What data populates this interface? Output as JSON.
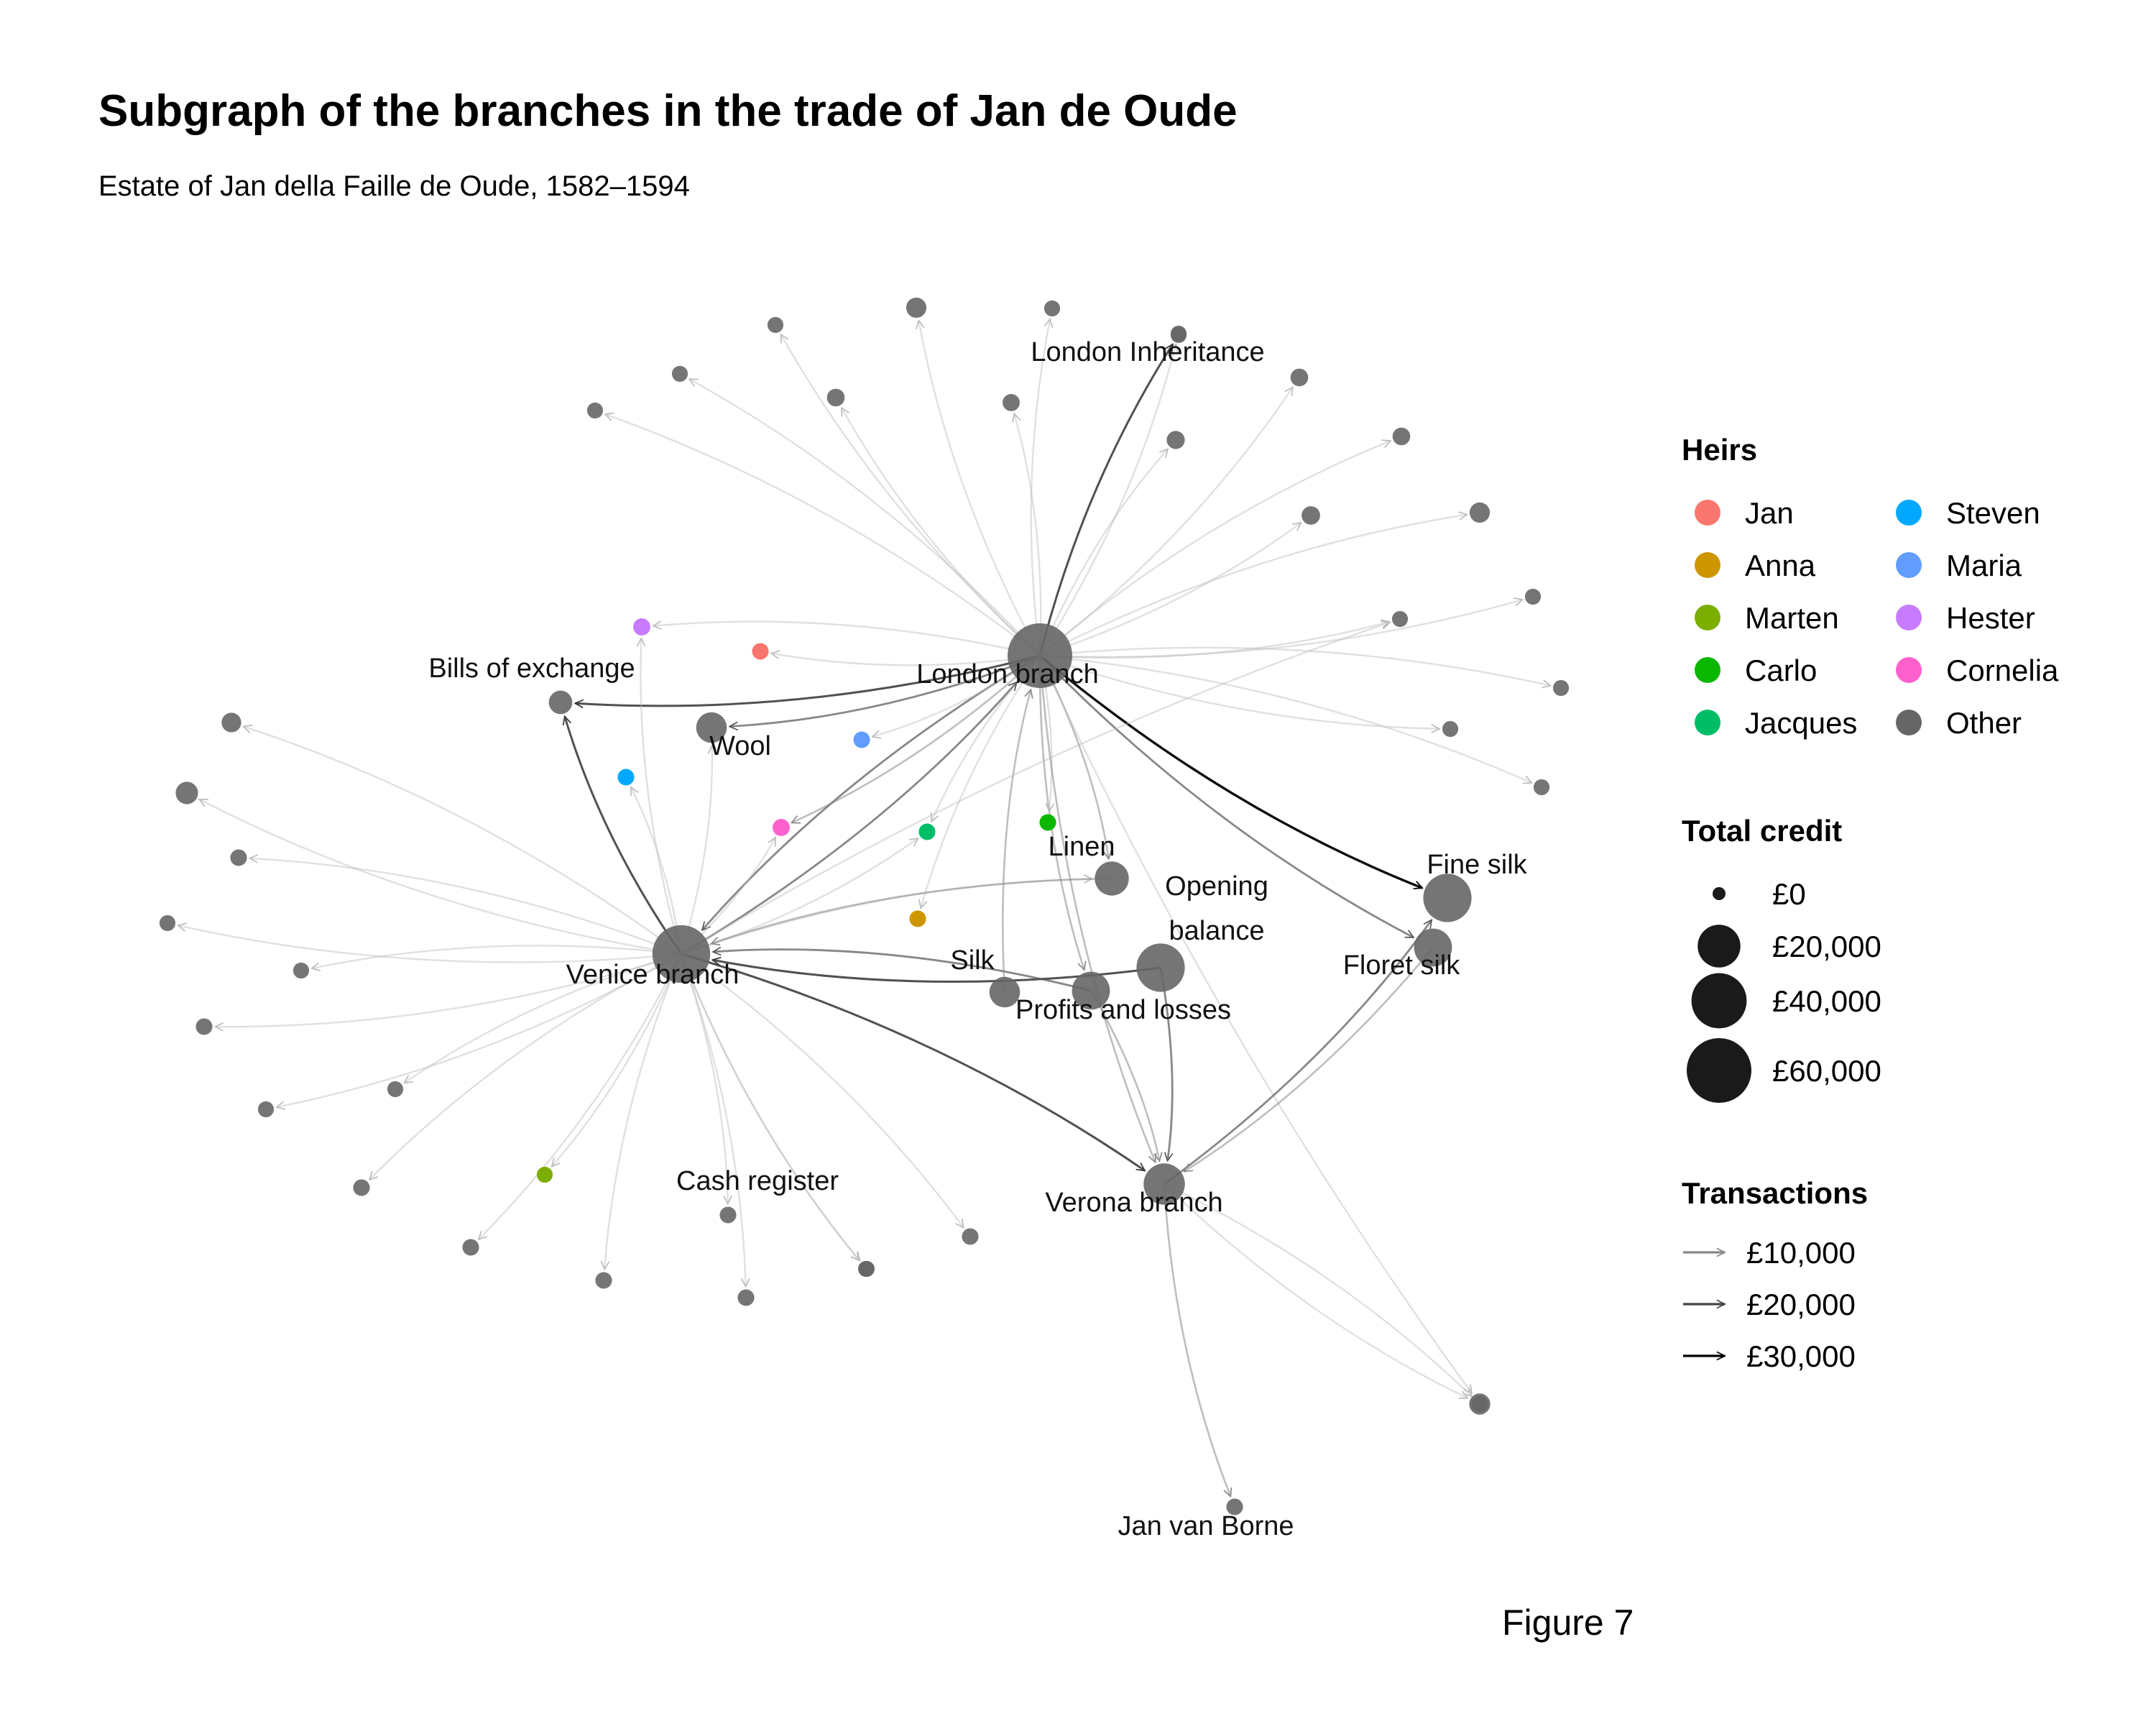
{
  "title": "Subgraph of the branches in the trade of Jan de Oude",
  "subtitle": "Estate of Jan della Faille de Oude, 1582–1594",
  "caption": "Figure 7",
  "legend": {
    "heirs_title": "Heirs",
    "heirs": [
      {
        "name": "Jan",
        "color": "#F8766D"
      },
      {
        "name": "Anna",
        "color": "#CD9600"
      },
      {
        "name": "Marten",
        "color": "#7CAE00"
      },
      {
        "name": "Carlo",
        "color": "#0CB702"
      },
      {
        "name": "Jacques",
        "color": "#00BE67"
      },
      {
        "name": "Steven",
        "color": "#00A9FF"
      },
      {
        "name": "Maria",
        "color": "#619CFF"
      },
      {
        "name": "Hester",
        "color": "#C77CFF"
      },
      {
        "name": "Cornelia",
        "color": "#FF61CC"
      },
      {
        "name": "Other",
        "color": "#666666"
      }
    ],
    "credit_title": "Total credit",
    "credit": [
      {
        "label": "£0",
        "value": 0
      },
      {
        "label": "£20,000",
        "value": 20000
      },
      {
        "label": "£40,000",
        "value": 40000
      },
      {
        "label": "£60,000",
        "value": 60000
      }
    ],
    "transactions_title": "Transactions",
    "transactions": [
      {
        "label": "£10,000",
        "value": 10000
      },
      {
        "label": "£20,000",
        "value": 20000
      },
      {
        "label": "£30,000",
        "value": 30000
      }
    ]
  },
  "network": {
    "nodes": [
      {
        "id": "london",
        "label": "London branch",
        "group": "Other",
        "credit": 60000
      },
      {
        "id": "venice",
        "label": "Venice branch",
        "group": "Other",
        "credit": 45000
      },
      {
        "id": "verona",
        "label": "Verona branch",
        "group": "Other",
        "credit": 18000
      },
      {
        "id": "london_inh",
        "label": "London Inheritance",
        "group": "Other",
        "credit": 200
      },
      {
        "id": "bills",
        "label": "Bills of exchange",
        "group": "Other",
        "credit": 2500
      },
      {
        "id": "wool",
        "label": "Wool",
        "group": "Other",
        "credit": 7000
      },
      {
        "id": "linen",
        "label": "Linen",
        "group": "Other",
        "credit": 10000
      },
      {
        "id": "opening",
        "label": "Opening\nbalance",
        "group": "Other",
        "credit": 28000
      },
      {
        "id": "fine_silk",
        "label": "Fine silk",
        "group": "Other",
        "credit": 28000
      },
      {
        "id": "floret_silk",
        "label": "Floret silk",
        "group": "Other",
        "credit": 14000
      },
      {
        "id": "silk",
        "label": "Silk",
        "group": "Other",
        "credit": 7000
      },
      {
        "id": "profits",
        "label": "Profits and losses",
        "group": "Other",
        "credit": 14000
      },
      {
        "id": "cash",
        "label": "Cash register",
        "group": "Other",
        "credit": 300
      },
      {
        "id": "van_borne",
        "label": "Jan van Borne",
        "group": "Other",
        "credit": 300
      },
      {
        "id": "h_jan",
        "label": "",
        "group": "Jan",
        "credit": 300
      },
      {
        "id": "h_anna",
        "label": "",
        "group": "Anna",
        "credit": 300
      },
      {
        "id": "h_marten",
        "label": "",
        "group": "Marten",
        "credit": 200
      },
      {
        "id": "h_carlo",
        "label": "",
        "group": "Carlo",
        "credit": 300
      },
      {
        "id": "h_jacques",
        "label": "",
        "group": "Jacques",
        "credit": 300
      },
      {
        "id": "h_steven",
        "label": "",
        "group": "Steven",
        "credit": 300
      },
      {
        "id": "h_maria",
        "label": "",
        "group": "Maria",
        "credit": 300
      },
      {
        "id": "h_hester",
        "label": "",
        "group": "Hester",
        "credit": 400
      },
      {
        "id": "h_cornelia",
        "label": "",
        "group": "Cornelia",
        "credit": 400
      },
      {
        "id": "o1",
        "label": "",
        "group": "Other",
        "credit": 200
      },
      {
        "id": "o2",
        "label": "",
        "group": "Other",
        "credit": 500
      },
      {
        "id": "o3",
        "label": "",
        "group": "Other",
        "credit": 400
      },
      {
        "id": "o4",
        "label": "",
        "group": "Other",
        "credit": 200
      },
      {
        "id": "o5",
        "label": "",
        "group": "Other",
        "credit": 200
      },
      {
        "id": "o6",
        "label": "",
        "group": "Other",
        "credit": 600
      },
      {
        "id": "o7",
        "label": "",
        "group": "Other",
        "credit": 700
      },
      {
        "id": "o8",
        "label": "",
        "group": "Other",
        "credit": 500
      },
      {
        "id": "o9",
        "label": "",
        "group": "Other",
        "credit": 200
      },
      {
        "id": "o10",
        "label": "",
        "group": "Other",
        "credit": 1200
      },
      {
        "id": "o11",
        "label": "",
        "group": "Other",
        "credit": 500
      },
      {
        "id": "o12",
        "label": "",
        "group": "Other",
        "credit": 1200
      },
      {
        "id": "o13",
        "label": "",
        "group": "Other",
        "credit": 200
      },
      {
        "id": "o14",
        "label": "",
        "group": "Other",
        "credit": 200
      },
      {
        "id": "o15",
        "label": "",
        "group": "Other",
        "credit": 200
      },
      {
        "id": "o16",
        "label": "",
        "group": "Other",
        "credit": 200
      },
      {
        "id": "o17",
        "label": "",
        "group": "Other",
        "credit": 200
      },
      {
        "id": "o18",
        "label": "",
        "group": "Other",
        "credit": 200
      },
      {
        "id": "o19",
        "label": "",
        "group": "Other",
        "credit": 1500
      },
      {
        "id": "o20",
        "label": "",
        "group": "Other",
        "credit": 1000
      },
      {
        "id": "o21",
        "label": "",
        "group": "Other",
        "credit": 2000
      },
      {
        "id": "o22",
        "label": "",
        "group": "Other",
        "credit": 300
      },
      {
        "id": "o23",
        "label": "",
        "group": "Other",
        "credit": 200
      },
      {
        "id": "o24",
        "label": "",
        "group": "Other",
        "credit": 200
      },
      {
        "id": "o25",
        "label": "",
        "group": "Other",
        "credit": 300
      },
      {
        "id": "o26",
        "label": "",
        "group": "Other",
        "credit": 200
      },
      {
        "id": "o27",
        "label": "",
        "group": "Other",
        "credit": 200
      },
      {
        "id": "o28",
        "label": "",
        "group": "Other",
        "credit": 300
      },
      {
        "id": "o29",
        "label": "",
        "group": "Other",
        "credit": 300
      },
      {
        "id": "o30",
        "label": "",
        "group": "Other",
        "credit": 300
      },
      {
        "id": "o31",
        "label": "",
        "group": "Other",
        "credit": 300
      },
      {
        "id": "o32",
        "label": "",
        "group": "Other",
        "credit": 200
      },
      {
        "id": "o33",
        "label": "",
        "group": "Other",
        "credit": 300
      },
      {
        "id": "o34",
        "label": "",
        "group": "Other",
        "credit": 200
      },
      {
        "id": "o35",
        "label": "",
        "group": "Other",
        "credit": 300
      }
    ],
    "edges": [
      {
        "from": "london",
        "to": "london_inh",
        "value": 22000
      },
      {
        "from": "london",
        "to": "fine_silk",
        "value": 30000
      },
      {
        "from": "london",
        "to": "bills",
        "value": 14000
      },
      {
        "from": "london",
        "to": "venice",
        "value": 9000
      },
      {
        "from": "london",
        "to": "wool",
        "value": 8000
      },
      {
        "from": "london",
        "to": "floret_silk",
        "value": 9000
      },
      {
        "from": "london",
        "to": "linen",
        "value": 3000
      },
      {
        "from": "london",
        "to": "profits",
        "value": 4000
      },
      {
        "from": "london",
        "to": "h_jan",
        "value": 2000
      },
      {
        "from": "london",
        "to": "h_hester",
        "value": 2000
      },
      {
        "from": "london",
        "to": "h_cornelia",
        "value": 3000
      },
      {
        "from": "london",
        "to": "h_jacques",
        "value": 2000
      },
      {
        "from": "london",
        "to": "h_carlo",
        "value": 1500
      },
      {
        "from": "london",
        "to": "h_anna",
        "value": 1500
      },
      {
        "from": "london",
        "to": "h_maria",
        "value": 1500
      },
      {
        "from": "london",
        "to": "o1",
        "value": 1000
      },
      {
        "from": "london",
        "to": "o2",
        "value": 1500
      },
      {
        "from": "london",
        "to": "o3",
        "value": 1000
      },
      {
        "from": "london",
        "to": "o4",
        "value": 1000
      },
      {
        "from": "london",
        "to": "o5",
        "value": 1000
      },
      {
        "from": "london",
        "to": "o6",
        "value": 1500
      },
      {
        "from": "london",
        "to": "o7",
        "value": 1500
      },
      {
        "from": "london",
        "to": "o8",
        "value": 1500
      },
      {
        "from": "london",
        "to": "o9",
        "value": 1000
      },
      {
        "from": "london",
        "to": "o10",
        "value": 1500
      },
      {
        "from": "london",
        "to": "o11",
        "value": 1000
      },
      {
        "from": "london",
        "to": "o12",
        "value": 1500
      },
      {
        "from": "london",
        "to": "o13",
        "value": 1000
      },
      {
        "from": "london",
        "to": "o14",
        "value": 1000
      },
      {
        "from": "london",
        "to": "o15",
        "value": 1000
      },
      {
        "from": "london",
        "to": "o16",
        "value": 1000
      },
      {
        "from": "london",
        "to": "o17",
        "value": 1000
      },
      {
        "from": "london",
        "to": "o18",
        "value": 1000
      },
      {
        "from": "london",
        "to": "o19",
        "value": 1500
      },
      {
        "from": "venice",
        "to": "bills",
        "value": 13000
      },
      {
        "from": "venice",
        "to": "london",
        "value": 10000
      },
      {
        "from": "venice",
        "to": "verona",
        "value": 12000
      },
      {
        "from": "venice",
        "to": "h_cornelia",
        "value": 2000
      },
      {
        "from": "venice",
        "to": "h_hester",
        "value": 1500
      },
      {
        "from": "venice",
        "to": "h_steven",
        "value": 1500
      },
      {
        "from": "venice",
        "to": "h_marten",
        "value": 1500
      },
      {
        "from": "venice",
        "to": "wool",
        "value": 2000
      },
      {
        "from": "venice",
        "to": "linen",
        "value": 1500
      },
      {
        "from": "venice",
        "to": "h_jacques",
        "value": 1500
      },
      {
        "from": "venice",
        "to": "cash",
        "value": 2000
      },
      {
        "from": "venice",
        "to": "o20",
        "value": 1500
      },
      {
        "from": "venice",
        "to": "o21",
        "value": 1500
      },
      {
        "from": "venice",
        "to": "o22",
        "value": 1000
      },
      {
        "from": "venice",
        "to": "o23",
        "value": 1000
      },
      {
        "from": "venice",
        "to": "o24",
        "value": 1000
      },
      {
        "from": "venice",
        "to": "o25",
        "value": 1000
      },
      {
        "from": "venice",
        "to": "o26",
        "value": 1000
      },
      {
        "from": "venice",
        "to": "o27",
        "value": 1000
      },
      {
        "from": "venice",
        "to": "o28",
        "value": 1000
      },
      {
        "from": "venice",
        "to": "o29",
        "value": 1000
      },
      {
        "from": "venice",
        "to": "o30",
        "value": 1000
      },
      {
        "from": "venice",
        "to": "o31",
        "value": 1000
      },
      {
        "from": "venice",
        "to": "o32",
        "value": 1000
      },
      {
        "from": "venice",
        "to": "o33",
        "value": 1000
      },
      {
        "from": "venice",
        "to": "o34",
        "value": 1000
      },
      {
        "from": "opening",
        "to": "venice",
        "value": 22000
      },
      {
        "from": "profits",
        "to": "venice",
        "value": 7000
      },
      {
        "from": "silk",
        "to": "london",
        "value": 6000
      },
      {
        "from": "linen",
        "to": "venice",
        "value": 3000
      },
      {
        "from": "opening",
        "to": "verona",
        "value": 8000
      },
      {
        "from": "london",
        "to": "verona",
        "value": 5000
      },
      {
        "from": "profits",
        "to": "verona",
        "value": 3000
      },
      {
        "from": "verona",
        "to": "fine_silk",
        "value": 11000
      },
      {
        "from": "floret_silk",
        "to": "verona",
        "value": 3000
      },
      {
        "from": "verona",
        "to": "van_borne",
        "value": 3000
      },
      {
        "from": "verona",
        "to": "o35",
        "value": 1500
      },
      {
        "from": "verona",
        "to": "o19",
        "value": 1000
      },
      {
        "from": "venice",
        "to": "o17",
        "value": 1000
      }
    ]
  }
}
